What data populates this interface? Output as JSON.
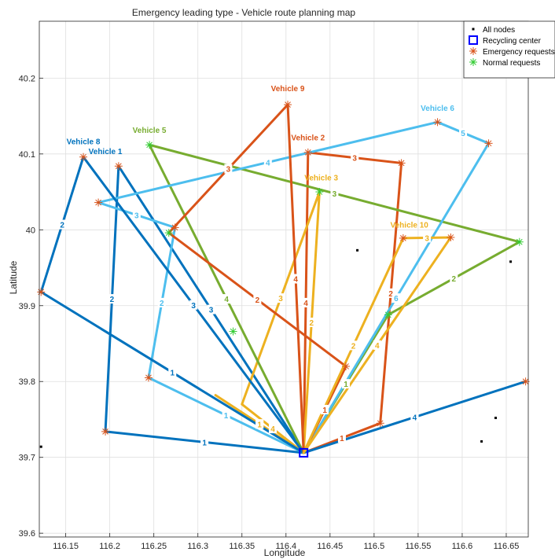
{
  "chart_data": {
    "type": "line",
    "title": "Emergency leading type - Vehicle route planning map",
    "xlabel": "Longitude",
    "ylabel": "Latitude",
    "xlim": [
      116.12,
      116.675
    ],
    "ylim": [
      39.595,
      40.275
    ],
    "xticks": [
      "116.15",
      "116.2",
      "116.25",
      "116.3",
      "116.35",
      "116.4",
      "116.45",
      "116.5",
      "116.55",
      "116.6",
      "116.65"
    ],
    "yticks": [
      "39.6",
      "39.7",
      "39.8",
      "39.9",
      "40",
      "40.1",
      "40.2"
    ],
    "grid": true,
    "legend_position": "top-right",
    "legend": [
      {
        "label": "All nodes",
        "marker": "dot",
        "color": "#000000"
      },
      {
        "label": "Recycling center",
        "marker": "square",
        "color": "#0000ff"
      },
      {
        "label": "Emergency requests",
        "marker": "asterisk",
        "color": "#d95319"
      },
      {
        "label": "Normal requests",
        "marker": "asterisk",
        "color": "#33cc33"
      }
    ],
    "depot": {
      "x": 116.42,
      "y": 39.706
    },
    "other_nodes": [
      {
        "x": 116.122,
        "y": 39.714
      },
      {
        "x": 116.481,
        "y": 39.973
      },
      {
        "x": 116.655,
        "y": 39.958
      },
      {
        "x": 116.638,
        "y": 39.752
      },
      {
        "x": 116.622,
        "y": 39.721
      }
    ],
    "emergency_requests": [
      {
        "x": 116.402,
        "y": 40.165
      },
      {
        "x": 116.425,
        "y": 40.102
      },
      {
        "x": 116.531,
        "y": 40.088
      },
      {
        "x": 116.533,
        "y": 39.989
      },
      {
        "x": 116.587,
        "y": 39.99
      },
      {
        "x": 116.468,
        "y": 39.82
      },
      {
        "x": 116.507,
        "y": 39.745
      },
      {
        "x": 116.672,
        "y": 39.8
      },
      {
        "x": 116.17,
        "y": 40.096
      },
      {
        "x": 116.21,
        "y": 40.084
      },
      {
        "x": 116.187,
        "y": 40.036
      },
      {
        "x": 116.122,
        "y": 39.918
      },
      {
        "x": 116.195,
        "y": 39.734
      },
      {
        "x": 116.244,
        "y": 39.805
      },
      {
        "x": 116.572,
        "y": 40.142
      },
      {
        "x": 116.63,
        "y": 40.114
      },
      {
        "x": 116.274,
        "y": 40.003
      }
    ],
    "normal_requests": [
      {
        "x": 116.245,
        "y": 40.112
      },
      {
        "x": 116.438,
        "y": 40.05
      },
      {
        "x": 116.665,
        "y": 39.984
      },
      {
        "x": 116.267,
        "y": 39.996
      },
      {
        "x": 116.34,
        "y": 39.866
      },
      {
        "x": 116.516,
        "y": 39.888
      }
    ],
    "series": [
      {
        "name": "Vehicle 1",
        "color": "#0072bd",
        "x": [
          116.42,
          116.195,
          116.21,
          116.42
        ],
        "y": [
          39.706,
          39.734,
          40.084,
          39.706
        ],
        "segment_labels": [
          "1",
          "2",
          "3"
        ],
        "name_anchor": {
          "x": 116.195,
          "y": 40.1
        }
      },
      {
        "name": "Vehicle 2",
        "color": "#d95319",
        "x": [
          116.42,
          116.425,
          116.531,
          116.507,
          116.42
        ],
        "y": [
          39.706,
          40.102,
          40.088,
          39.745,
          39.706
        ],
        "segment_labels": [
          "4",
          "3",
          "2",
          "1"
        ],
        "name_anchor": {
          "x": 116.425,
          "y": 40.118
        }
      },
      {
        "name": "Vehicle 3",
        "color": "#edb120",
        "x": [
          116.42,
          116.35,
          116.438,
          116.42,
          116.32,
          116.42
        ],
        "y": [
          39.706,
          39.77,
          40.05,
          39.706,
          39.782,
          39.706
        ],
        "segment_labels": [
          "4",
          "3",
          "2",
          "1",
          "1"
        ],
        "name_anchor": {
          "x": 116.44,
          "y": 40.065
        }
      },
      {
        "name": "Vehicle 5",
        "color": "#77ac30",
        "x": [
          116.42,
          116.245,
          116.665,
          116.516,
          116.42
        ],
        "y": [
          39.706,
          40.112,
          39.984,
          39.888,
          39.706
        ],
        "segment_labels": [
          "4",
          "3",
          "2",
          "1"
        ],
        "name_anchor": {
          "x": 116.245,
          "y": 40.128
        }
      },
      {
        "name": "Vehicle 6",
        "color": "#4dbeee",
        "x": [
          116.42,
          116.244,
          116.274,
          116.187,
          116.572,
          116.63,
          116.42
        ],
        "y": [
          39.706,
          39.805,
          40.003,
          40.036,
          40.142,
          40.114,
          39.706
        ],
        "segment_labels": [
          "1",
          "2",
          "3",
          "4",
          "5",
          "6"
        ],
        "name_anchor": {
          "x": 116.572,
          "y": 40.157
        }
      },
      {
        "name": "Vehicle 8",
        "color": "#0072bd",
        "x": [
          116.42,
          116.122,
          116.17,
          116.42,
          116.672,
          116.42
        ],
        "y": [
          39.706,
          39.918,
          40.096,
          39.706,
          39.8,
          39.706
        ],
        "segment_labels": [
          "1",
          "2",
          "3",
          "3",
          "4"
        ],
        "name_anchor": {
          "x": 116.17,
          "y": 40.113
        }
      },
      {
        "name": "Vehicle 9",
        "color": "#d95319",
        "x": [
          116.42,
          116.468,
          116.267,
          116.402,
          116.42
        ],
        "y": [
          39.706,
          39.82,
          39.996,
          40.165,
          39.706
        ],
        "segment_labels": [
          "1",
          "2",
          "3",
          "4"
        ],
        "name_anchor": {
          "x": 116.402,
          "y": 40.183
        }
      },
      {
        "name": "Vehicle 10",
        "color": "#edb120",
        "x": [
          116.42,
          116.533,
          116.587,
          116.42
        ],
        "y": [
          39.706,
          39.989,
          39.99,
          39.706
        ],
        "segment_labels": [
          "2",
          "3",
          "4"
        ],
        "name_anchor": {
          "x": 116.54,
          "y": 40.003
        }
      }
    ]
  }
}
